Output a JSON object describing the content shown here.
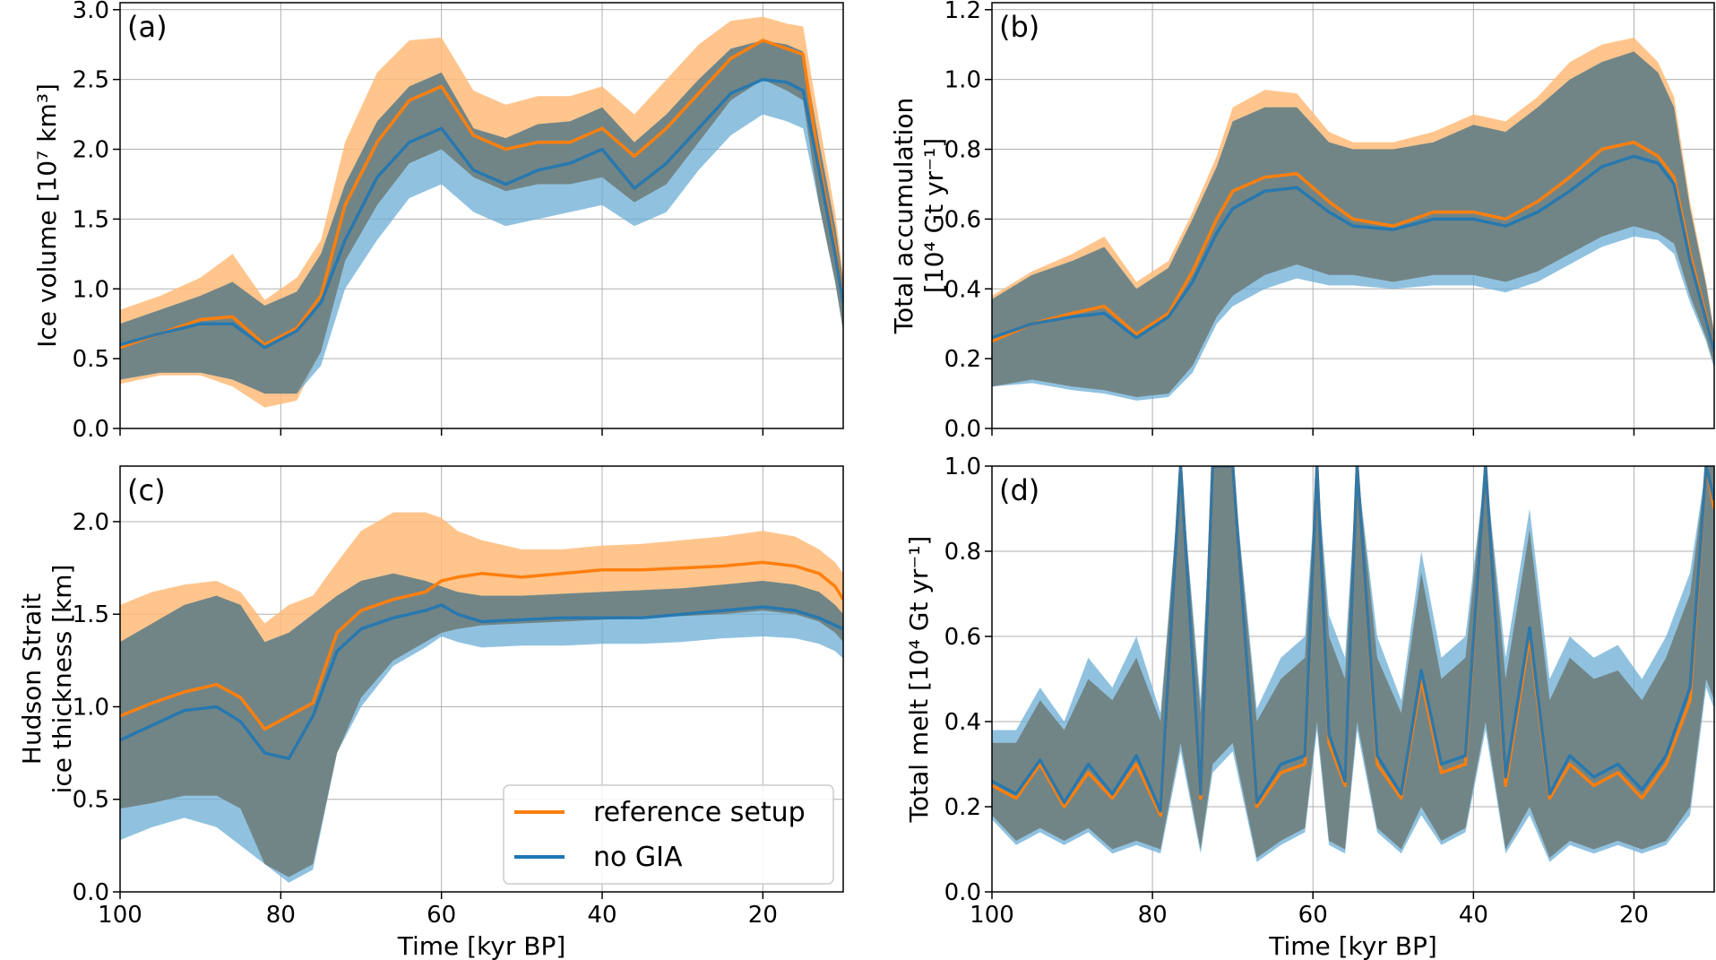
{
  "figure": {
    "legend": {
      "placement": "lower-right of panel (c)",
      "entries": [
        {
          "label": "reference setup",
          "color": "#ff7f0e"
        },
        {
          "label": "no GIA",
          "color": "#1f77b4"
        }
      ]
    }
  },
  "colors": {
    "reference": "#ff7f0e",
    "reference_band": "#ffbb78",
    "nogia": "#1f77b4",
    "nogia_band": "#6baed6",
    "overlap_band": "#6f7f80",
    "grid": "#b0b0b0"
  },
  "chart_data": [
    {
      "type": "area",
      "panel_label": "(a)",
      "xlabel": "",
      "ylabel_lines": [
        "Ice volume [10⁷ km³]"
      ],
      "xlim": [
        100,
        10
      ],
      "ylim": [
        0,
        3.05
      ],
      "xticks": [
        100,
        80,
        60,
        40,
        20
      ],
      "yticks": [
        0.0,
        0.5,
        1.0,
        1.5,
        2.0,
        2.5,
        3.0
      ],
      "ytick_labels": [
        "0.0",
        "0.5",
        "1.0",
        "1.5",
        "2.0",
        "2.5",
        "3.0"
      ],
      "show_xtick_labels": false,
      "grid": true,
      "x": [
        100,
        95,
        90,
        86,
        82,
        78,
        75,
        72,
        68,
        64,
        60,
        56,
        52,
        48,
        44,
        40,
        36,
        32,
        28,
        24,
        20,
        17,
        15,
        13,
        11,
        10
      ],
      "series": [
        {
          "name": "reference setup",
          "mean": [
            0.58,
            0.68,
            0.78,
            0.8,
            0.6,
            0.72,
            0.95,
            1.6,
            2.05,
            2.35,
            2.45,
            2.1,
            2.0,
            2.05,
            2.05,
            2.15,
            1.95,
            2.15,
            2.4,
            2.65,
            2.78,
            2.72,
            2.68,
            1.9,
            1.3,
            0.92
          ],
          "lower": [
            0.32,
            0.38,
            0.38,
            0.3,
            0.15,
            0.2,
            0.55,
            1.2,
            1.6,
            1.9,
            2.0,
            1.8,
            1.7,
            1.75,
            1.75,
            1.8,
            1.62,
            1.75,
            2.05,
            2.35,
            2.5,
            2.42,
            2.35,
            1.6,
            1.05,
            0.7
          ],
          "upper": [
            0.85,
            0.95,
            1.08,
            1.25,
            0.92,
            1.08,
            1.35,
            2.05,
            2.55,
            2.78,
            2.8,
            2.42,
            2.32,
            2.38,
            2.38,
            2.45,
            2.25,
            2.5,
            2.75,
            2.92,
            2.95,
            2.9,
            2.88,
            2.2,
            1.55,
            1.1
          ]
        },
        {
          "name": "no GIA",
          "mean": [
            0.6,
            0.68,
            0.75,
            0.75,
            0.58,
            0.7,
            0.9,
            1.35,
            1.8,
            2.05,
            2.15,
            1.85,
            1.75,
            1.85,
            1.9,
            2.0,
            1.72,
            1.9,
            2.15,
            2.4,
            2.5,
            2.48,
            2.42,
            1.85,
            1.25,
            0.9
          ],
          "lower": [
            0.35,
            0.4,
            0.4,
            0.35,
            0.25,
            0.25,
            0.45,
            1.0,
            1.35,
            1.65,
            1.75,
            1.55,
            1.45,
            1.5,
            1.55,
            1.6,
            1.45,
            1.55,
            1.85,
            2.1,
            2.25,
            2.2,
            2.15,
            1.6,
            1.05,
            0.7
          ],
          "upper": [
            0.75,
            0.85,
            0.95,
            1.05,
            0.88,
            0.98,
            1.25,
            1.75,
            2.2,
            2.45,
            2.55,
            2.15,
            2.08,
            2.18,
            2.2,
            2.3,
            2.05,
            2.25,
            2.5,
            2.72,
            2.78,
            2.75,
            2.7,
            2.05,
            1.45,
            1.05
          ]
        }
      ]
    },
    {
      "type": "area",
      "panel_label": "(b)",
      "xlabel": "",
      "ylabel_lines": [
        "Total accumulation",
        "[10⁴ Gt yr⁻¹]"
      ],
      "xlim": [
        100,
        10
      ],
      "ylim": [
        0,
        1.22
      ],
      "xticks": [
        100,
        80,
        60,
        40,
        20
      ],
      "yticks": [
        0.0,
        0.2,
        0.4,
        0.6,
        0.8,
        1.0,
        1.2
      ],
      "ytick_labels": [
        "0.0",
        "0.2",
        "0.4",
        "0.6",
        "0.8",
        "1.0",
        "1.2"
      ],
      "show_xtick_labels": false,
      "grid": true,
      "x": [
        100,
        95,
        90,
        86,
        82,
        78,
        75,
        72,
        70,
        66,
        62,
        58,
        55,
        50,
        45,
        40,
        36,
        32,
        28,
        24,
        20,
        17,
        15,
        13,
        11,
        10
      ],
      "series": [
        {
          "name": "reference setup",
          "mean": [
            0.25,
            0.3,
            0.33,
            0.35,
            0.27,
            0.33,
            0.45,
            0.6,
            0.68,
            0.72,
            0.73,
            0.65,
            0.6,
            0.58,
            0.62,
            0.62,
            0.6,
            0.65,
            0.72,
            0.8,
            0.82,
            0.78,
            0.72,
            0.5,
            0.32,
            0.22
          ],
          "lower": [
            0.12,
            0.14,
            0.12,
            0.11,
            0.09,
            0.1,
            0.18,
            0.32,
            0.38,
            0.44,
            0.47,
            0.44,
            0.44,
            0.42,
            0.44,
            0.44,
            0.42,
            0.45,
            0.5,
            0.55,
            0.58,
            0.56,
            0.53,
            0.38,
            0.26,
            0.18
          ],
          "upper": [
            0.38,
            0.45,
            0.5,
            0.55,
            0.42,
            0.48,
            0.62,
            0.78,
            0.92,
            0.97,
            0.96,
            0.85,
            0.82,
            0.82,
            0.85,
            0.9,
            0.88,
            0.95,
            1.05,
            1.1,
            1.12,
            1.05,
            0.95,
            0.65,
            0.42,
            0.28
          ]
        },
        {
          "name": "no GIA",
          "mean": [
            0.26,
            0.3,
            0.32,
            0.33,
            0.26,
            0.32,
            0.42,
            0.56,
            0.63,
            0.68,
            0.69,
            0.62,
            0.58,
            0.57,
            0.6,
            0.6,
            0.58,
            0.62,
            0.68,
            0.75,
            0.78,
            0.76,
            0.7,
            0.48,
            0.31,
            0.22
          ],
          "lower": [
            0.12,
            0.13,
            0.11,
            0.1,
            0.08,
            0.09,
            0.16,
            0.3,
            0.35,
            0.4,
            0.43,
            0.41,
            0.41,
            0.4,
            0.41,
            0.41,
            0.39,
            0.42,
            0.47,
            0.52,
            0.55,
            0.54,
            0.5,
            0.36,
            0.25,
            0.17
          ],
          "upper": [
            0.37,
            0.44,
            0.48,
            0.52,
            0.4,
            0.46,
            0.6,
            0.75,
            0.88,
            0.92,
            0.92,
            0.82,
            0.8,
            0.8,
            0.82,
            0.87,
            0.85,
            0.92,
            1.0,
            1.05,
            1.08,
            1.02,
            0.92,
            0.63,
            0.41,
            0.27
          ]
        }
      ]
    },
    {
      "type": "area",
      "panel_label": "(c)",
      "xlabel": "Time [kyr BP]",
      "ylabel_lines": [
        "Hudson Strait",
        "ice thickness [km]"
      ],
      "xlim": [
        100,
        10
      ],
      "ylim": [
        0,
        2.3
      ],
      "xticks": [
        100,
        80,
        60,
        40,
        20
      ],
      "xtick_labels": [
        "100",
        "80",
        "60",
        "40",
        "20"
      ],
      "yticks": [
        0.0,
        0.5,
        1.0,
        1.5,
        2.0
      ],
      "ytick_labels": [
        "0.0",
        "0.5",
        "1.0",
        "1.5",
        "2.0"
      ],
      "show_xtick_labels": true,
      "grid": true,
      "x": [
        100,
        96,
        92,
        88,
        85,
        82,
        79,
        76,
        73,
        70,
        66,
        62,
        60,
        58,
        55,
        50,
        45,
        40,
        35,
        30,
        25,
        20,
        16,
        13,
        11,
        10
      ],
      "series": [
        {
          "name": "reference setup",
          "mean": [
            0.95,
            1.02,
            1.08,
            1.12,
            1.05,
            0.88,
            0.95,
            1.02,
            1.4,
            1.52,
            1.58,
            1.62,
            1.68,
            1.7,
            1.72,
            1.7,
            1.72,
            1.74,
            1.74,
            1.75,
            1.76,
            1.78,
            1.76,
            1.72,
            1.65,
            1.58
          ],
          "lower": [
            0.45,
            0.48,
            0.52,
            0.52,
            0.45,
            0.15,
            0.08,
            0.15,
            0.75,
            1.05,
            1.25,
            1.35,
            1.4,
            1.42,
            1.44,
            1.45,
            1.46,
            1.47,
            1.48,
            1.49,
            1.5,
            1.52,
            1.5,
            1.46,
            1.4,
            1.35
          ],
          "upper": [
            1.55,
            1.62,
            1.66,
            1.68,
            1.62,
            1.45,
            1.55,
            1.6,
            1.78,
            1.95,
            2.05,
            2.05,
            2.02,
            1.95,
            1.9,
            1.85,
            1.85,
            1.87,
            1.88,
            1.9,
            1.92,
            1.95,
            1.92,
            1.85,
            1.78,
            1.72
          ]
        },
        {
          "name": "no GIA",
          "mean": [
            0.82,
            0.9,
            0.98,
            1.0,
            0.92,
            0.75,
            0.72,
            0.95,
            1.3,
            1.42,
            1.48,
            1.52,
            1.55,
            1.5,
            1.46,
            1.47,
            1.48,
            1.48,
            1.48,
            1.5,
            1.52,
            1.54,
            1.52,
            1.48,
            1.44,
            1.42
          ],
          "lower": [
            0.28,
            0.35,
            0.4,
            0.35,
            0.25,
            0.15,
            0.05,
            0.12,
            0.75,
            1.0,
            1.22,
            1.32,
            1.38,
            1.35,
            1.32,
            1.33,
            1.33,
            1.34,
            1.34,
            1.35,
            1.37,
            1.38,
            1.37,
            1.34,
            1.3,
            1.26
          ],
          "upper": [
            1.35,
            1.45,
            1.55,
            1.6,
            1.55,
            1.35,
            1.4,
            1.5,
            1.6,
            1.68,
            1.72,
            1.68,
            1.65,
            1.62,
            1.6,
            1.6,
            1.61,
            1.62,
            1.63,
            1.64,
            1.66,
            1.68,
            1.66,
            1.62,
            1.55,
            1.5
          ]
        }
      ]
    },
    {
      "type": "area",
      "panel_label": "(d)",
      "xlabel": "Time [kyr BP]",
      "ylabel_lines": [
        "Total melt [10⁴ Gt yr⁻¹]"
      ],
      "xlim": [
        100,
        10
      ],
      "ylim": [
        0,
        1.0
      ],
      "xticks": [
        100,
        80,
        60,
        40,
        20
      ],
      "xtick_labels": [
        "100",
        "80",
        "60",
        "40",
        "20"
      ],
      "yticks": [
        0.0,
        0.2,
        0.4,
        0.6,
        0.8,
        1.0
      ],
      "ytick_labels": [
        "0.0",
        "0.2",
        "0.4",
        "0.6",
        "0.8",
        "1.0"
      ],
      "show_xtick_labels": true,
      "grid": true,
      "x": [
        100,
        97,
        94,
        91,
        88,
        85,
        82,
        79,
        76.5,
        74,
        72.5,
        70,
        67,
        64,
        61,
        59.5,
        58,
        56,
        54.5,
        52,
        49,
        46.5,
        44,
        41,
        38.5,
        36,
        33,
        30.5,
        28,
        25,
        22,
        19,
        16,
        13,
        11,
        10
      ],
      "series": [
        {
          "name": "reference setup",
          "mean": [
            0.25,
            0.22,
            0.3,
            0.2,
            0.28,
            0.22,
            0.3,
            0.18,
            1.0,
            0.22,
            1.0,
            1.0,
            0.2,
            0.28,
            0.3,
            1.0,
            0.35,
            0.25,
            1.0,
            0.3,
            0.22,
            0.5,
            0.28,
            0.3,
            1.0,
            0.25,
            0.6,
            0.22,
            0.3,
            0.25,
            0.28,
            0.22,
            0.3,
            0.45,
            1.0,
            0.9
          ],
          "lower": [
            0.18,
            0.12,
            0.15,
            0.12,
            0.15,
            0.1,
            0.12,
            0.1,
            0.35,
            0.1,
            0.3,
            0.35,
            0.08,
            0.12,
            0.15,
            0.4,
            0.12,
            0.1,
            0.4,
            0.15,
            0.1,
            0.2,
            0.12,
            0.15,
            0.4,
            0.1,
            0.2,
            0.08,
            0.12,
            0.1,
            0.12,
            0.1,
            0.12,
            0.2,
            0.5,
            0.45
          ],
          "upper": [
            0.35,
            0.35,
            0.45,
            0.38,
            0.5,
            0.45,
            0.55,
            0.4,
            1.0,
            0.42,
            1.0,
            1.0,
            0.4,
            0.5,
            0.55,
            1.0,
            0.6,
            0.5,
            1.0,
            0.55,
            0.42,
            0.75,
            0.5,
            0.55,
            1.0,
            0.5,
            0.85,
            0.45,
            0.55,
            0.5,
            0.52,
            0.45,
            0.55,
            0.7,
            1.0,
            1.0
          ]
        },
        {
          "name": "no GIA",
          "mean": [
            0.26,
            0.23,
            0.31,
            0.21,
            0.3,
            0.23,
            0.32,
            0.19,
            1.0,
            0.23,
            1.0,
            1.0,
            0.21,
            0.3,
            0.32,
            1.0,
            0.37,
            0.26,
            1.0,
            0.32,
            0.23,
            0.52,
            0.3,
            0.32,
            1.0,
            0.27,
            0.62,
            0.23,
            0.32,
            0.27,
            0.3,
            0.24,
            0.32,
            0.48,
            1.0,
            0.92
          ],
          "lower": [
            0.17,
            0.11,
            0.14,
            0.11,
            0.14,
            0.09,
            0.11,
            0.09,
            0.33,
            0.09,
            0.28,
            0.33,
            0.07,
            0.11,
            0.14,
            0.38,
            0.11,
            0.09,
            0.38,
            0.14,
            0.09,
            0.18,
            0.11,
            0.14,
            0.38,
            0.09,
            0.18,
            0.07,
            0.11,
            0.09,
            0.11,
            0.09,
            0.11,
            0.18,
            0.48,
            0.43
          ],
          "upper": [
            0.38,
            0.38,
            0.48,
            0.4,
            0.55,
            0.48,
            0.6,
            0.42,
            1.0,
            0.45,
            1.0,
            1.0,
            0.43,
            0.55,
            0.6,
            1.0,
            0.65,
            0.55,
            1.0,
            0.6,
            0.45,
            0.8,
            0.55,
            0.6,
            1.0,
            0.55,
            0.9,
            0.5,
            0.6,
            0.55,
            0.58,
            0.5,
            0.6,
            0.75,
            1.0,
            1.0
          ]
        }
      ]
    }
  ]
}
